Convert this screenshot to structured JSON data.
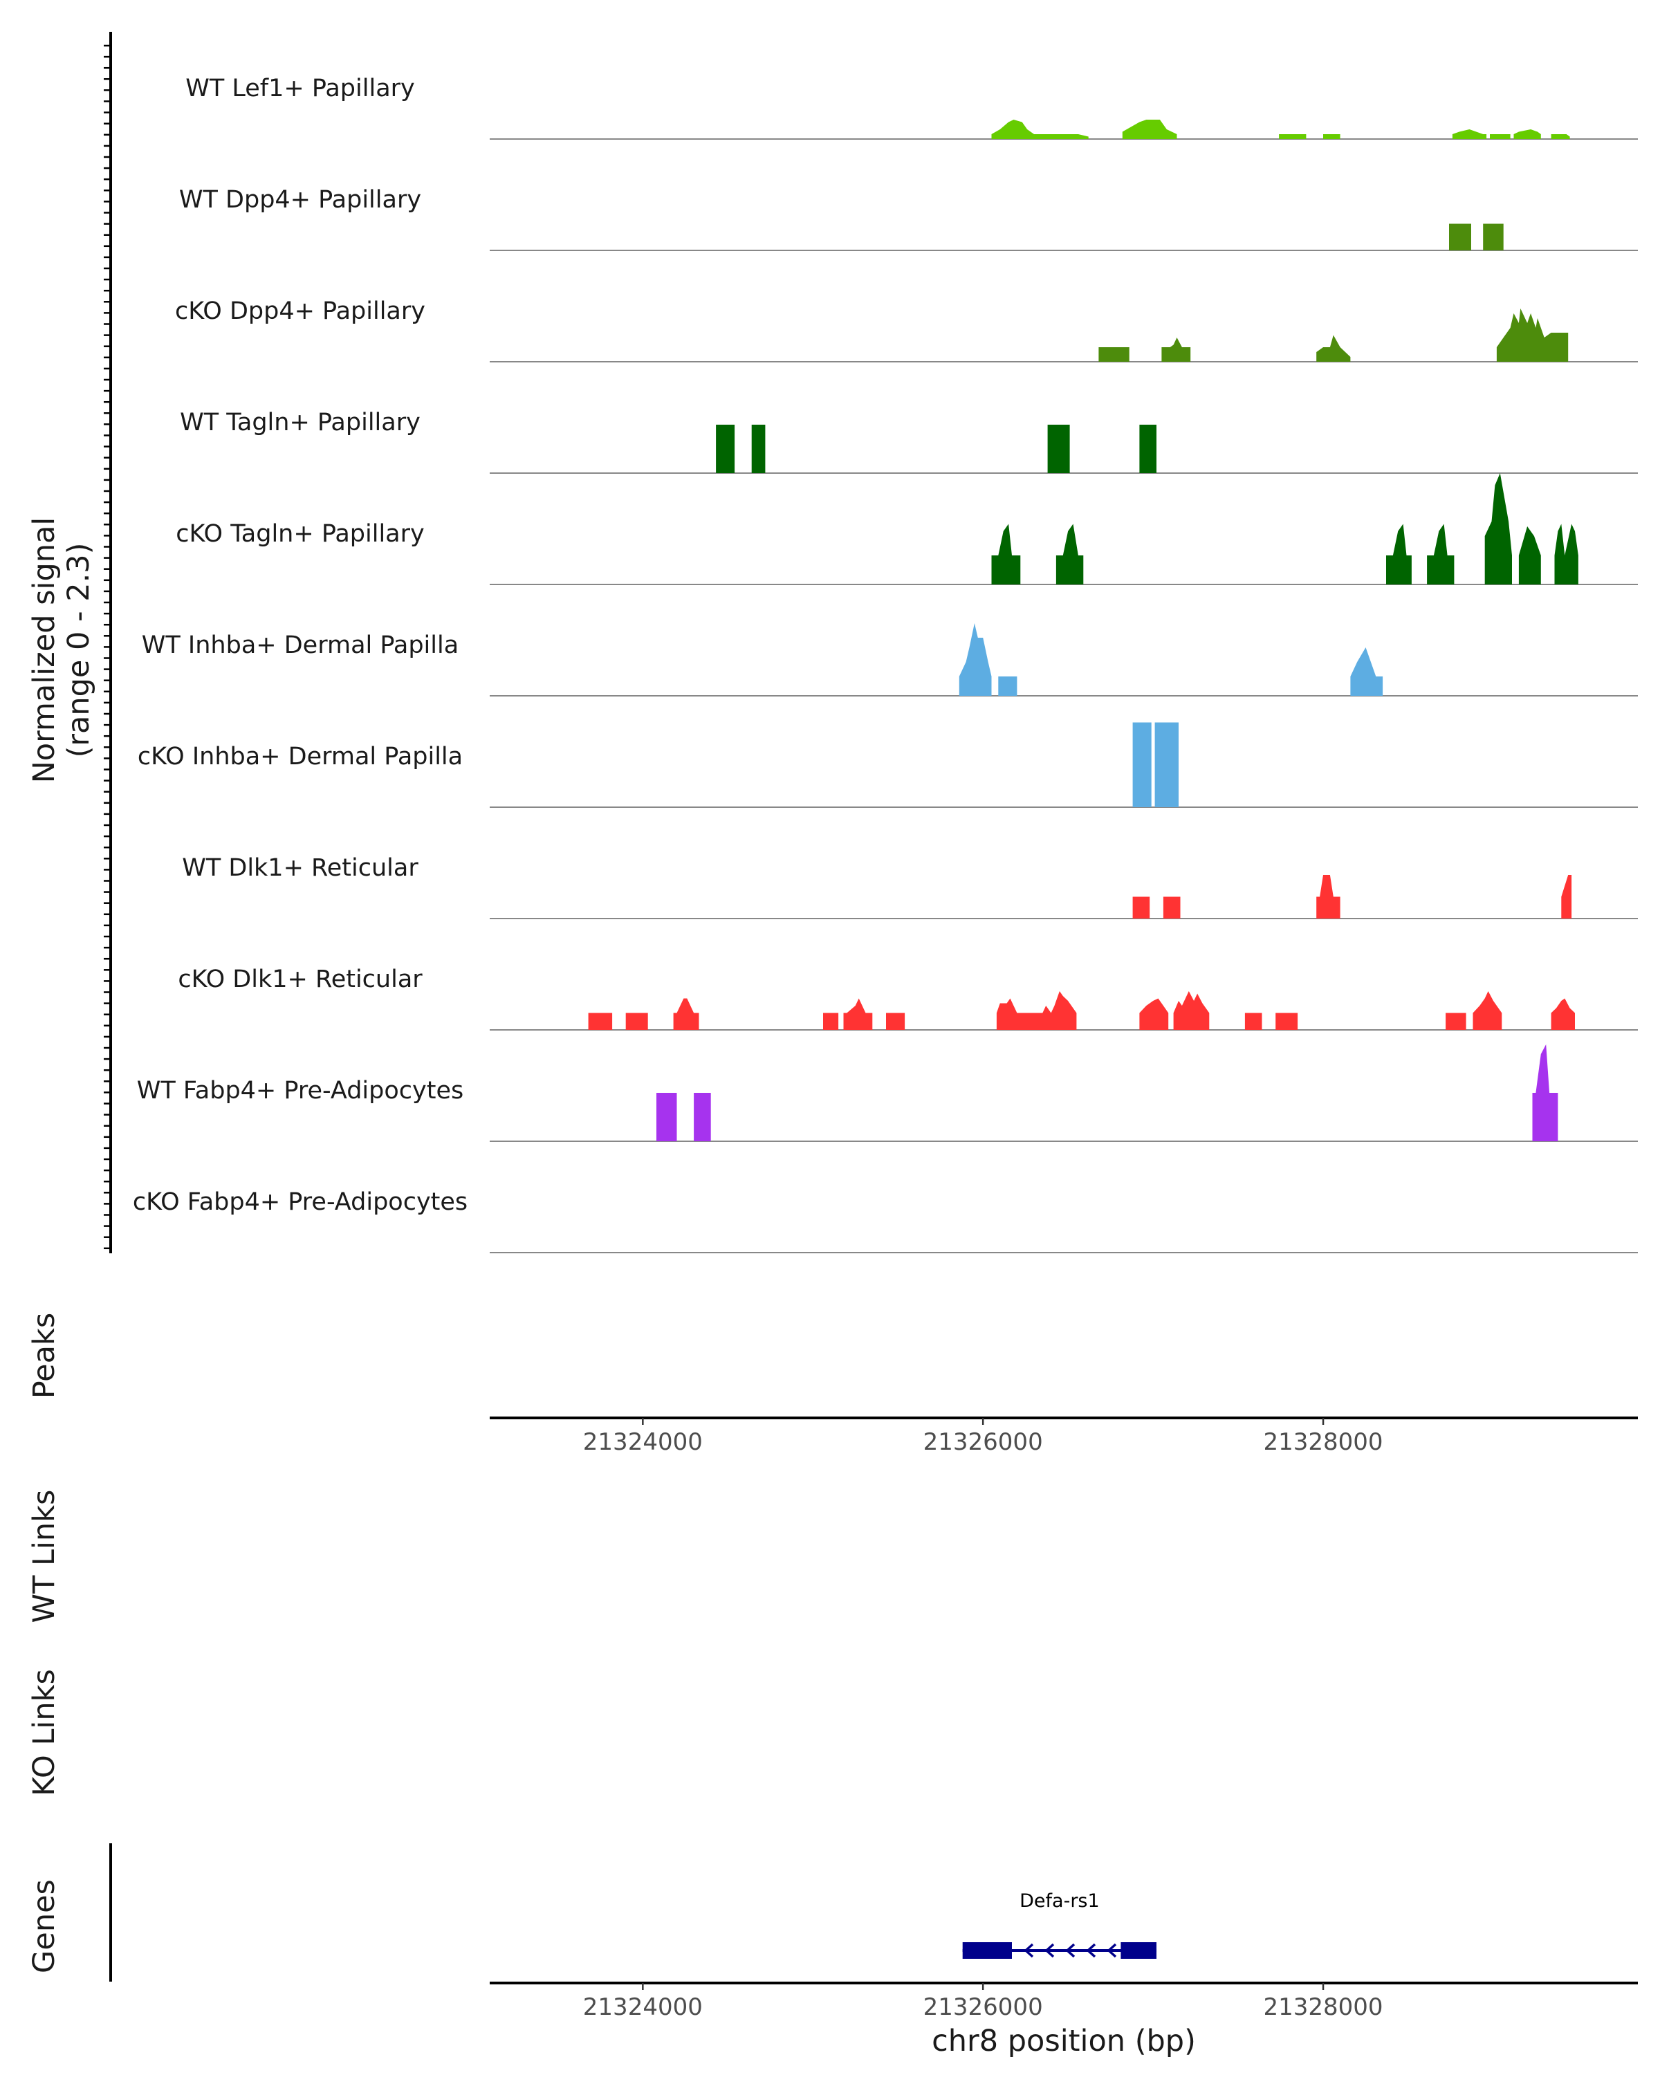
{
  "chart_data": {
    "type": "area",
    "title": "",
    "chromosome": "chr8",
    "xlabel": "chr8 position (bp)",
    "x_range": [
      21323100,
      21329850
    ],
    "x_ticks": [
      21324000,
      21326000,
      21328000
    ],
    "x_tick_labels": [
      "21324000",
      "21326000",
      "21328000"
    ],
    "ylabel": "Normalized signal",
    "ylabel_range": "(range 0 - 2.3)",
    "ylim": [
      0,
      2.3
    ],
    "tracks": [
      {
        "name": "WT Lef1+ Papillary",
        "color": "#66CC00",
        "peaks": [
          {
            "x": [
              21326050,
              21326100,
              21326150,
              21326180,
              21326230,
              21326260,
              21326300
            ],
            "y": [
              0.1,
              0.2,
              0.35,
              0.4,
              0.35,
              0.2,
              0.1
            ]
          },
          {
            "x": [
              21326300,
              21326400,
              21326420,
              21326540,
              21326560,
              21326620
            ],
            "y": [
              0.1,
              0.1,
              0.1,
              0.1,
              0.1,
              0.05
            ]
          },
          {
            "x": [
              21326820,
              21326870,
              21326920,
              21326960,
              21327040,
              21327080,
              21327140
            ],
            "y": [
              0.15,
              0.25,
              0.35,
              0.4,
              0.4,
              0.2,
              0.1
            ]
          },
          {
            "x": [
              21327740,
              21327780,
              21327860,
              21327900
            ],
            "y": [
              0.1,
              0.1,
              0.1,
              0.1
            ]
          },
          {
            "x": [
              21328000,
              21328030,
              21328080,
              21328100
            ],
            "y": [
              0.1,
              0.1,
              0.1,
              0.1
            ]
          },
          {
            "x": [
              21328760,
              21328800,
              21328860,
              21328900,
              21328940,
              21328960
            ],
            "y": [
              0.1,
              0.15,
              0.2,
              0.15,
              0.1,
              0.1
            ]
          },
          {
            "x": [
              21328980,
              21329040,
              21329080,
              21329100
            ],
            "y": [
              0.1,
              0.1,
              0.1,
              0.1
            ]
          },
          {
            "x": [
              21329120,
              21329150,
              21329220,
              21329260,
              21329280
            ],
            "y": [
              0.1,
              0.15,
              0.2,
              0.15,
              0.1
            ]
          },
          {
            "x": [
              21329340,
              21329380,
              21329430,
              21329450
            ],
            "y": [
              0.1,
              0.1,
              0.1,
              0.05
            ]
          }
        ]
      },
      {
        "name": "WT Dpp4+ Papillary",
        "color": "#4D8C0C",
        "peaks": [
          {
            "x": [
              21328740,
              21328780,
              21328840,
              21328870
            ],
            "y": [
              0.55,
              0.55,
              0.55,
              0.55
            ]
          },
          {
            "x": [
              21328940,
              21328970,
              21329030,
              21329060
            ],
            "y": [
              0.55,
              0.55,
              0.55,
              0.55
            ]
          }
        ]
      },
      {
        "name": "cKO Dpp4+ Papillary",
        "color": "#4D8C0C",
        "peaks": [
          {
            "x": [
              21326680,
              21326720,
              21326820,
              21326860
            ],
            "y": [
              0.3,
              0.3,
              0.3,
              0.3
            ]
          },
          {
            "x": [
              21327050,
              21327100,
              21327120,
              21327140,
              21327170,
              21327220
            ],
            "y": [
              0.3,
              0.3,
              0.35,
              0.5,
              0.3,
              0.3
            ]
          },
          {
            "x": [
              21327960,
              21328000,
              21328040,
              21328060,
              21328100,
              21328160
            ],
            "y": [
              0.2,
              0.3,
              0.3,
              0.55,
              0.3,
              0.1
            ]
          },
          {
            "x": [
              21329020,
              21329060,
              21329100,
              21329120,
              21329150,
              21329160,
              21329200,
              21329220,
              21329250,
              21329260,
              21329300,
              21329340,
              21329400,
              21329440
            ],
            "y": [
              0.3,
              0.5,
              0.7,
              1.0,
              0.8,
              1.1,
              0.8,
              1.0,
              0.7,
              0.9,
              0.5,
              0.6,
              0.6,
              0.6
            ]
          }
        ]
      },
      {
        "name": "WT Tagln+ Papillary",
        "color": "#006400",
        "peaks": [
          {
            "x": [
              21324430,
              21324450,
              21324520,
              21324540
            ],
            "y": [
              1.0,
              1.0,
              1.0,
              1.0
            ]
          },
          {
            "x": [
              21324640,
              21324660,
              21324700,
              21324720
            ],
            "y": [
              1.0,
              1.0,
              1.0,
              1.0
            ]
          },
          {
            "x": [
              21326380,
              21326400,
              21326460,
              21326510
            ],
            "y": [
              1.0,
              1.0,
              1.0,
              1.0
            ]
          },
          {
            "x": [
              21326920,
              21326960,
              21327010,
              21327020
            ],
            "y": [
              1.0,
              1.0,
              1.0,
              1.0
            ]
          }
        ]
      },
      {
        "name": "cKO Tagln+ Papillary",
        "color": "#006400",
        "peaks": [
          {
            "x": [
              21326050,
              21326090,
              21326120,
              21326150,
              21326170,
              21326220
            ],
            "y": [
              0.6,
              0.6,
              1.1,
              1.25,
              0.6,
              0.6
            ]
          },
          {
            "x": [
              21326430,
              21326470,
              21326500,
              21326530,
              21326560,
              21326590
            ],
            "y": [
              0.6,
              0.6,
              1.1,
              1.25,
              0.6,
              0.6
            ]
          },
          {
            "x": [
              21328370,
              21328410,
              21328440,
              21328470,
              21328490,
              21328520
            ],
            "y": [
              0.6,
              0.6,
              1.1,
              1.25,
              0.6,
              0.6
            ]
          },
          {
            "x": [
              21328610,
              21328650,
              21328680,
              21328710,
              21328730,
              21328770
            ],
            "y": [
              0.6,
              0.6,
              1.1,
              1.25,
              0.6,
              0.6
            ]
          },
          {
            "x": [
              21328950,
              21328990,
              21329010,
              21329040,
              21329060,
              21329090,
              21329110
            ],
            "y": [
              1.0,
              1.3,
              2.05,
              2.3,
              1.9,
              1.3,
              0.6
            ]
          },
          {
            "x": [
              21329150,
              21329200,
              21329240,
              21329280
            ],
            "y": [
              0.6,
              1.2,
              1.0,
              0.6
            ]
          },
          {
            "x": [
              21329360,
              21329380,
              21329400,
              21329420,
              21329460,
              21329480,
              21329500
            ],
            "y": [
              0.6,
              1.1,
              1.25,
              0.6,
              1.25,
              1.1,
              0.6
            ]
          }
        ]
      },
      {
        "name": "WT Inhba+ Dermal Papilla",
        "color": "#5DADE2",
        "peaks": [
          {
            "x": [
              21325860,
              21325900,
              21325920,
              21325950,
              21325970,
              21326000,
              21326030,
              21326050
            ],
            "y": [
              0.4,
              0.7,
              1.0,
              1.5,
              1.2,
              1.2,
              0.7,
              0.4
            ]
          },
          {
            "x": [
              21326090,
              21326110,
              21326170,
              21326200
            ],
            "y": [
              0.4,
              0.4,
              0.4,
              0.4
            ]
          },
          {
            "x": [
              21328160,
              21328200,
              21328250,
              21328280,
              21328310,
              21328350
            ],
            "y": [
              0.4,
              0.7,
              1.0,
              0.7,
              0.4,
              0.4
            ]
          }
        ]
      },
      {
        "name": "cKO Inhba+ Dermal Papilla",
        "color": "#5DADE2",
        "peaks": [
          {
            "x": [
              21326880,
              21326920,
              21326960,
              21326990
            ],
            "y": [
              1.75,
              1.75,
              1.75,
              1.75
            ]
          },
          {
            "x": [
              21327010,
              21327050,
              21327110,
              21327150
            ],
            "y": [
              1.75,
              1.75,
              1.75,
              1.75
            ]
          }
        ]
      },
      {
        "name": "WT Dlk1+ Reticular",
        "color": "#FF3333",
        "peaks": [
          {
            "x": [
              21326880,
              21326900,
              21326960,
              21326980
            ],
            "y": [
              0.45,
              0.45,
              0.45,
              0.45
            ]
          },
          {
            "x": [
              21327060,
              21327080,
              21327140,
              21327160
            ],
            "y": [
              0.45,
              0.45,
              0.45,
              0.45
            ]
          },
          {
            "x": [
              21327960,
              21327980,
              21328000,
              21328040,
              21328060,
              21328100
            ],
            "y": [
              0.45,
              0.45,
              0.9,
              0.9,
              0.45,
              0.45
            ]
          },
          {
            "x": [
              21329400,
              21329440,
              21329460
            ],
            "y": [
              0.45,
              0.9,
              0.9
            ]
          }
        ]
      },
      {
        "name": "cKO Dlk1+ Reticular",
        "color": "#FF3333",
        "peaks": [
          {
            "x": [
              21323680,
              21323700,
              21323780,
              21323820
            ],
            "y": [
              0.35,
              0.35,
              0.35,
              0.35
            ]
          },
          {
            "x": [
              21323900,
              21323930,
              21323980,
              21324030
            ],
            "y": [
              0.35,
              0.35,
              0.35,
              0.35
            ]
          },
          {
            "x": [
              21324180,
              21324200,
              21324240,
              21324260,
              21324300,
              21324330
            ],
            "y": [
              0.35,
              0.35,
              0.65,
              0.65,
              0.35,
              0.35
            ]
          },
          {
            "x": [
              21325060,
              21325080,
              21325130,
              21325150
            ],
            "y": [
              0.35,
              0.35,
              0.35,
              0.35
            ]
          },
          {
            "x": [
              21325180,
              21325200,
              21325250,
              21325270,
              21325310,
              21325350
            ],
            "y": [
              0.35,
              0.35,
              0.5,
              0.65,
              0.35,
              0.35
            ]
          },
          {
            "x": [
              21325430,
              21325450,
              21325520,
              21325540
            ],
            "y": [
              0.35,
              0.35,
              0.35,
              0.35
            ]
          },
          {
            "x": [
              21326080,
              21326100,
              21326140,
              21326160,
              21326200,
              21326350,
              21326370,
              21326400,
              21326420,
              21326450,
              21326470,
              21326500,
              21326550
            ],
            "y": [
              0.35,
              0.55,
              0.55,
              0.65,
              0.35,
              0.35,
              0.5,
              0.35,
              0.5,
              0.8,
              0.7,
              0.6,
              0.35
            ]
          },
          {
            "x": [
              21326920,
              21326960,
              21327000,
              21327030,
              21327060,
              21327090
            ],
            "y": [
              0.35,
              0.5,
              0.6,
              0.65,
              0.5,
              0.35
            ]
          },
          {
            "x": [
              21327120,
              21327150,
              21327170,
              21327210,
              21327240,
              21327260,
              21327290,
              21327330
            ],
            "y": [
              0.35,
              0.6,
              0.5,
              0.8,
              0.6,
              0.75,
              0.55,
              0.35
            ]
          },
          {
            "x": [
              21327540,
              21327570,
              21327610,
              21327640
            ],
            "y": [
              0.35,
              0.35,
              0.35,
              0.35
            ]
          },
          {
            "x": [
              21327720,
              21327750,
              21327810,
              21327850
            ],
            "y": [
              0.35,
              0.35,
              0.35,
              0.35
            ]
          },
          {
            "x": [
              21328720,
              21328750,
              21328810,
              21328840
            ],
            "y": [
              0.35,
              0.35,
              0.35,
              0.35
            ]
          },
          {
            "x": [
              21328880,
              21328920,
              21328950,
              21328970,
              21329000,
              21329020,
              21329050
            ],
            "y": [
              0.35,
              0.5,
              0.65,
              0.8,
              0.6,
              0.5,
              0.35
            ]
          },
          {
            "x": [
              21329340,
              21329370,
              21329400,
              21329420,
              21329450,
              21329480
            ],
            "y": [
              0.35,
              0.45,
              0.6,
              0.65,
              0.45,
              0.35
            ]
          }
        ]
      },
      {
        "name": "WT Fabp4+ Pre-Adipocytes",
        "color": "#A633EE",
        "peaks": [
          {
            "x": [
              21324080,
              21324100,
              21324170,
              21324200
            ],
            "y": [
              1.0,
              1.0,
              1.0,
              1.0
            ]
          },
          {
            "x": [
              21324300,
              21324320,
              21324380,
              21324400
            ],
            "y": [
              1.0,
              1.0,
              1.0,
              1.0
            ]
          },
          {
            "x": [
              21329230,
              21329250,
              21329280,
              21329310,
              21329330,
              21329370,
              21329380
            ],
            "y": [
              1.0,
              1.0,
              1.8,
              2.0,
              1.0,
              1.0,
              1.0
            ]
          }
        ]
      },
      {
        "name": "cKO Fabp4+ Pre-Adipocytes",
        "color": "#A633EE",
        "peaks": []
      }
    ],
    "extra_tracks": [
      {
        "name": "Peaks"
      },
      {
        "name": "WT Links"
      },
      {
        "name": "KO Links"
      },
      {
        "name": "Genes"
      }
    ],
    "genes": [
      {
        "name": "Defa-rs1",
        "start": 21325880,
        "end": 21327020,
        "strand": "-",
        "color": "#00008B",
        "exons": [
          [
            21325880,
            21326170
          ],
          [
            21326810,
            21327020
          ]
        ]
      }
    ]
  }
}
